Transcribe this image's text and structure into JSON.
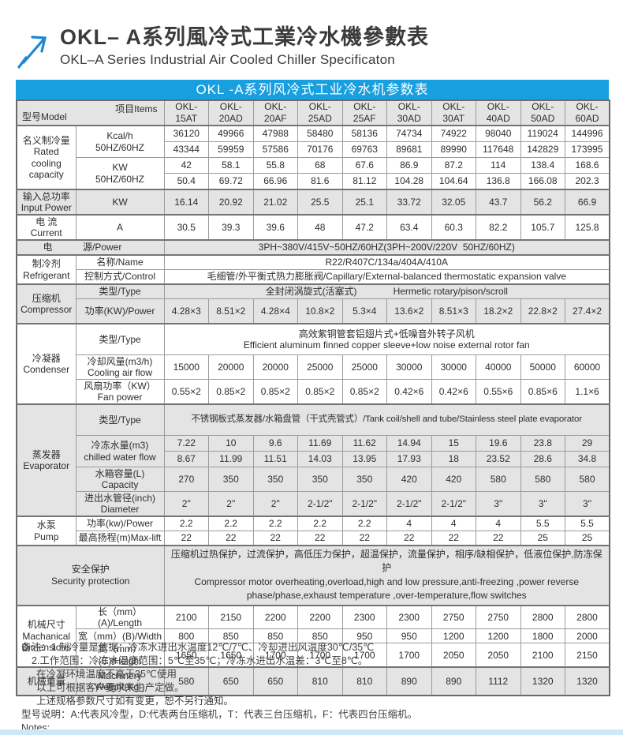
{
  "header": {
    "title_cn": "OKL– A系列風冷式工業冷水機參數表",
    "title_en": "OKL–A Series Industrial Air Cooled Chiller Specificaton"
  },
  "colors": {
    "accent_blue": "#189fe0",
    "row_gray": "#e4e4e4",
    "bottom_bar": "#cfe8f5",
    "table_border": "#6a6a6a"
  },
  "table": {
    "caption": "OKL -A系列风冷式工业冷水机参数表",
    "corner": {
      "model": "型号Model",
      "items": "项目Items"
    },
    "models": [
      "OKL-15AT",
      "OKL-20AD",
      "OKL-20AF",
      "OKL-25AD",
      "OKL-25AF",
      "OKL-30AD",
      "OKL-30AT",
      "OKL-40AD",
      "OKL-50AD",
      "OKL-60AD"
    ],
    "rated": {
      "label": "名义制冷量\nRated\ncooling\ncapacity",
      "kcal_label": "Kcal/h\n50HZ/60HZ",
      "kw_label": "KW\n50HZ/60HZ",
      "kcal_50hz": [
        "36120",
        "49966",
        "47988",
        "58480",
        "58136",
        "74734",
        "74922",
        "98040",
        "119024",
        "144996"
      ],
      "kcal_60hz": [
        "43344",
        "59959",
        "57586",
        "70176",
        "69763",
        "89681",
        "89990",
        "117648",
        "142829",
        "173995"
      ],
      "kw_50hz": [
        "42",
        "58.1",
        "55.8",
        "68",
        "67.6",
        "86.9",
        "87.2",
        "114",
        "138.4",
        "168.6"
      ],
      "kw_60hz": [
        "50.4",
        "69.72",
        "66.96",
        "81.6",
        "81.12",
        "104.28",
        "104.64",
        "136.8",
        "166.08",
        "202.3"
      ]
    },
    "input_power": {
      "label": "输入总功率\nInput Power",
      "unit": "KW",
      "values": [
        "16.14",
        "20.92",
        "21.02",
        "25.5",
        "25.1",
        "33.72",
        "32.05",
        "43.7",
        "56.2",
        "66.9"
      ]
    },
    "current": {
      "label": "电 流\nCurrent",
      "unit": "A",
      "values": [
        "30.5",
        "39.3",
        "39.6",
        "48",
        "47.2",
        "63.4",
        "60.3",
        "82.2",
        "105.7",
        "125.8"
      ]
    },
    "power_supply": {
      "label_left": "电",
      "label_right": "源/Power",
      "value": "3PH~380V/415V~50HZ/60HZ(3PH~200V/220V  50HZ/60HZ)"
    },
    "refrigerant": {
      "label": "制冷剂\nRefrigerant",
      "name_label": "名称/Name",
      "name": "R22/R407C/134a/404A/410A",
      "control_label": "控制方式/Control",
      "control": "毛细管/外平衡式热力膨胀阀/Capillary/External-balanced thermostatic expansion valve"
    },
    "compressor": {
      "label": "压缩机\nCompressor",
      "type_label": "类型/Type",
      "type_cn": "全封闭涡旋式(活塞式)",
      "type_en": "Hermetic rotary/pison/scroll",
      "power_label": "功率(KW)/Power",
      "power": [
        "4.28×3",
        "8.51×2",
        "4.28×4",
        "10.8×2",
        "5.3×4",
        "13.6×2",
        "8.51×3",
        "18.2×2",
        "22.8×2",
        "27.4×2"
      ]
    },
    "condenser": {
      "label": "冷凝器\nCondenser",
      "type_label": "类型/Type",
      "type": "高效紫铜管套铝翅片式+低噪音外转子风机\nEfficient aluminum finned copper sleeve+low noise external rotor fan",
      "airflow_label": "冷却风量(m3/h)\nCooling air flow",
      "airflow": [
        "15000",
        "20000",
        "20000",
        "25000",
        "25000",
        "30000",
        "30000",
        "40000",
        "50000",
        "60000"
      ],
      "fan_label": "风扇功率（KW）\nFan power",
      "fan": [
        "0.55×2",
        "0.85×2",
        "0.85×2",
        "0.85×2",
        "0.85×2",
        "0.42×6",
        "0.42×6",
        "0.55×6",
        "0.85×6",
        "1.1×6"
      ]
    },
    "evaporator": {
      "label": "蒸发器\nEvaporator",
      "type_label": "类型/Type",
      "type": "不锈钢板式蒸发器/水箱盘管（干式壳管式）/Tank coil/shell and tube/Stainless steel plate evaporator",
      "water_label": "冷冻水量(m3)\nchilled water flow",
      "water_50hz": [
        "7.22",
        "10",
        "9.6",
        "11.69",
        "11.62",
        "14.94",
        "15",
        "19.6",
        "23.8",
        "29"
      ],
      "water_60hz": [
        "8.67",
        "11.99",
        "11.51",
        "14.03",
        "13.95",
        "17.93",
        "18",
        "23.52",
        "28.6",
        "34.8"
      ],
      "tank_label": "水箱容量(L)\nCapacity",
      "tank": [
        "270",
        "350",
        "350",
        "350",
        "350",
        "420",
        "420",
        "580",
        "580",
        "580"
      ],
      "pipe_label": "进出水管径(inch)\nDiameter",
      "pipe": [
        "2\"",
        "2\"",
        "2\"",
        "2-1/2\"",
        "2-1/2\"",
        "2-1/2\"",
        "2-1/2\"",
        "3\"",
        "3\"",
        "3\""
      ]
    },
    "pump": {
      "label": "水泵\nPump",
      "power_label": "功率(kw)/Power",
      "power": [
        "2.2",
        "2.2",
        "2.2",
        "2.2",
        "2.2",
        "4",
        "4",
        "4",
        "5.5",
        "5.5"
      ],
      "lift_label": "最高扬程(m)Max-lift",
      "lift": [
        "22",
        "22",
        "22",
        "22",
        "22",
        "22",
        "22",
        "22",
        "25",
        "25"
      ]
    },
    "security": {
      "label": "安全保护\nSecurity protection",
      "value_cn": "压缩机过热保护，过流保护，高低压力保护，超温保护，流量保护，相序/缺相保护，低液位保护,防冻保护",
      "value_en": "Compressor motor overheating,overload,high and low pressure,anti-freezing ,power reverse phase/phase,exhaust temperature ,over-temperature,flow switches"
    },
    "dimensions": {
      "label": "机械尺寸\nMachanical\nDimensions",
      "length_label": "长（mm）(A)/Length",
      "length": [
        "2100",
        "2150",
        "2200",
        "2200",
        "2300",
        "2300",
        "2750",
        "2750",
        "2800",
        "2800"
      ],
      "width_label": "宽（mm）(B)/Width",
      "width": [
        "800",
        "850",
        "850",
        "850",
        "950",
        "950",
        "1200",
        "1200",
        "1800",
        "2000"
      ],
      "height_label": "高（mm）(C)/Height",
      "height": [
        "1650",
        "1650",
        "1700",
        "1700",
        "1700",
        "1700",
        "2050",
        "2050",
        "2100",
        "2150"
      ]
    },
    "weight": {
      "label": "机械重量",
      "item_label": "Machinery\nWeight(Kg )",
      "values": [
        "580",
        "650",
        "650",
        "810",
        "810",
        "890",
        "890",
        "1112",
        "1320",
        "1320"
      ]
    }
  },
  "notes": {
    "line1": "备注：1.制冷量是依据：冷冻水进出水温度12℃/7℃、冷却进出风温度30℃/35℃",
    "line2": "2.工作范围：冷冻水温度范围：5℃至35℃；冷冻水进出水温差：3℃至8℃。",
    "line3": "在冷凝环境温度不高于35℃使用",
    "line4": "以上可根据客户要求来生产定做。",
    "line5": "上述规格参数尺寸如有变更，恕不另行通知。",
    "line6": "型号说明：A:代表风冷型，D:代表两台压缩机，T：代表三台压缩机，F：代表四台压缩机。",
    "line7": "Notes:"
  }
}
